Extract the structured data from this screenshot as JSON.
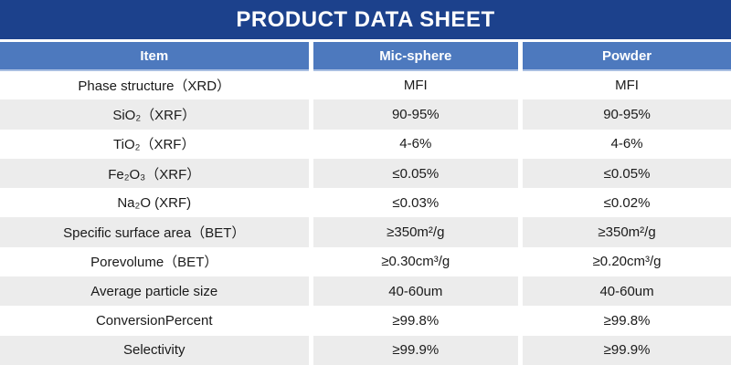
{
  "title": "PRODUCT DATA SHEET",
  "colors": {
    "title_bar": "#1c418c",
    "header_row": "#4d79be",
    "band_row": "#ececec",
    "header_underline": "#a9bfe2",
    "text": "#1a1a1a"
  },
  "table": {
    "columns": [
      "Item",
      "Mic-sphere",
      "Powder"
    ],
    "rows": [
      {
        "item": "Phase structure（XRD）",
        "mic": "MFI",
        "powder": "MFI"
      },
      {
        "item": "SiO₂（XRF）",
        "mic": "90-95%",
        "powder": "90-95%"
      },
      {
        "item": "TiO₂（XRF）",
        "mic": "4-6%",
        "powder": "4-6%"
      },
      {
        "item": "Fe₂O₃（XRF）",
        "mic": "≤0.05%",
        "powder": "≤0.05%"
      },
      {
        "item": "Na₂O (XRF)",
        "mic": "≤0.03%",
        "powder": "≤0.02%"
      },
      {
        "item": "Specific surface area（BET）",
        "mic": "≥350m²/g",
        "powder": "≥350m²/g"
      },
      {
        "item": "Porevolume（BET）",
        "mic": "≥0.30cm³/g",
        "powder": "≥0.20cm³/g"
      },
      {
        "item": "Average particle size",
        "mic": "40-60um",
        "powder": "40-60um"
      },
      {
        "item": "ConversionPercent",
        "mic": "≥99.8%",
        "powder": "≥99.8%"
      },
      {
        "item": "Selectivity",
        "mic": "≥99.9%",
        "powder": "≥99.9%"
      }
    ]
  }
}
